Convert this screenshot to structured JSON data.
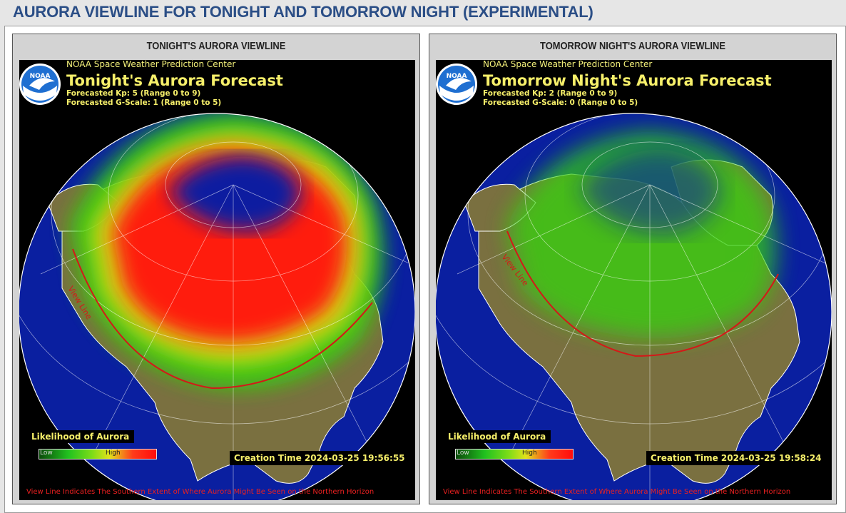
{
  "page": {
    "title": "AURORA VIEWLINE FOR TONIGHT AND TOMORROW NIGHT (EXPERIMENTAL)"
  },
  "panels": [
    {
      "heading": "TONIGHT'S AURORA VIEWLINE",
      "agency": "NOAA Space Weather Prediction Center",
      "logo_text": "NOAA",
      "forecast_title": "Tonight's Aurora Forecast",
      "kp_text": "Forecasted Kp: 5 (Range 0 to 9)",
      "g_scale_text": "Forecasted G-Scale: 1 (Range 0 to 5)",
      "legend_title": "Likelihood of Aurora",
      "legend_low": "Low",
      "legend_high": "High",
      "creation_time": "Creation Time 2024-03-25 19:56:55",
      "view_line_label": "View Line",
      "footer_note": "View Line Indicates The Southern Extent of Where Aurora Might Be Seen on the Northern Horizon"
    },
    {
      "heading": "TOMORROW NIGHT'S AURORA VIEWLINE",
      "agency": "NOAA Space Weather Prediction Center",
      "logo_text": "NOAA",
      "forecast_title": "Tomorrow Night's Aurora Forecast",
      "kp_text": "Forecasted Kp: 2 (Range 0 to 9)",
      "g_scale_text": "Forecasted G-Scale: 0 (Range 0 to 5)",
      "legend_title": "Likelihood of Aurora",
      "legend_low": "Low",
      "legend_high": "High",
      "creation_time": "Creation Time 2024-03-25 19:58:24",
      "view_line_label": "View Line",
      "footer_note": "View Line Indicates The Southern Extent of Where Aurora Might Be Seen on the Northern Horizon"
    }
  ],
  "colors": {
    "title": "#2b4e86",
    "ocean": "#0a1fa0",
    "land": "#7a7040",
    "aurora_high": "#ff1a0f",
    "aurora_low": "#36d411",
    "view_line": "#d41818",
    "text_yellow": "#f6ef6a"
  }
}
